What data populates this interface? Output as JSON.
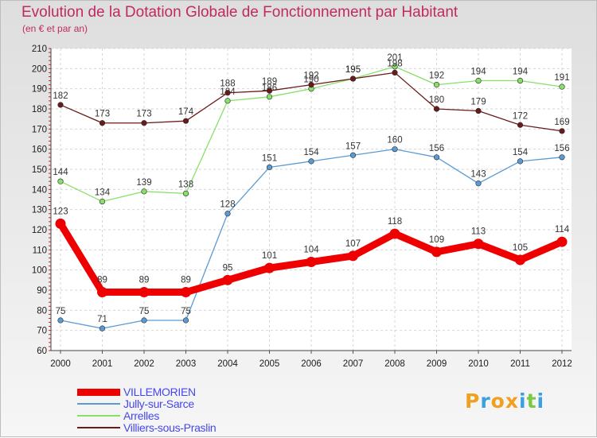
{
  "chart_data": {
    "type": "line",
    "title": "Evolution de la Dotation Globale de Fonctionnement par Habitant",
    "subtitle": "(en € et par an)",
    "x": [
      "2000",
      "2001",
      "2002",
      "2003",
      "2004",
      "2005",
      "2006",
      "2007",
      "2008",
      "2009",
      "2010",
      "2011",
      "2012"
    ],
    "ylim": [
      60,
      210
    ],
    "yticks": [
      60,
      70,
      80,
      90,
      100,
      110,
      120,
      130,
      140,
      150,
      160,
      170,
      180,
      190,
      200,
      210
    ],
    "grid": true,
    "legend_position": "bottom-left",
    "series": [
      {
        "name": "VILLEMORIEN",
        "color": "#ee0000",
        "emphasized": true,
        "values": [
          123,
          89,
          89,
          89,
          95,
          101,
          104,
          107,
          118,
          109,
          113,
          105,
          114
        ]
      },
      {
        "name": "Jully-sur-Sarce",
        "color": "#5b9bd5",
        "values": [
          75,
          71,
          75,
          75,
          128,
          151,
          154,
          157,
          160,
          156,
          143,
          154,
          156
        ]
      },
      {
        "name": "Arrelles",
        "color": "#88e06a",
        "values": [
          144,
          134,
          139,
          138,
          184,
          186,
          190,
          195,
          201,
          192,
          194,
          194,
          191
        ]
      },
      {
        "name": "Villiers-sous-Praslin",
        "color": "#6b1a1a",
        "values": [
          182,
          173,
          173,
          174,
          188,
          189,
          192,
          195,
          198,
          180,
          179,
          172,
          169
        ]
      }
    ]
  },
  "brand": {
    "name": "Proxiti",
    "letters": [
      "P",
      "r",
      "o",
      "x",
      "i",
      "t",
      "i"
    ],
    "letter_colors": [
      "#f0a020",
      "#3aa0e0",
      "#f0a020",
      "#f0a020",
      "#3aa0e0",
      "#7ac943",
      "#3aa0e0"
    ]
  }
}
